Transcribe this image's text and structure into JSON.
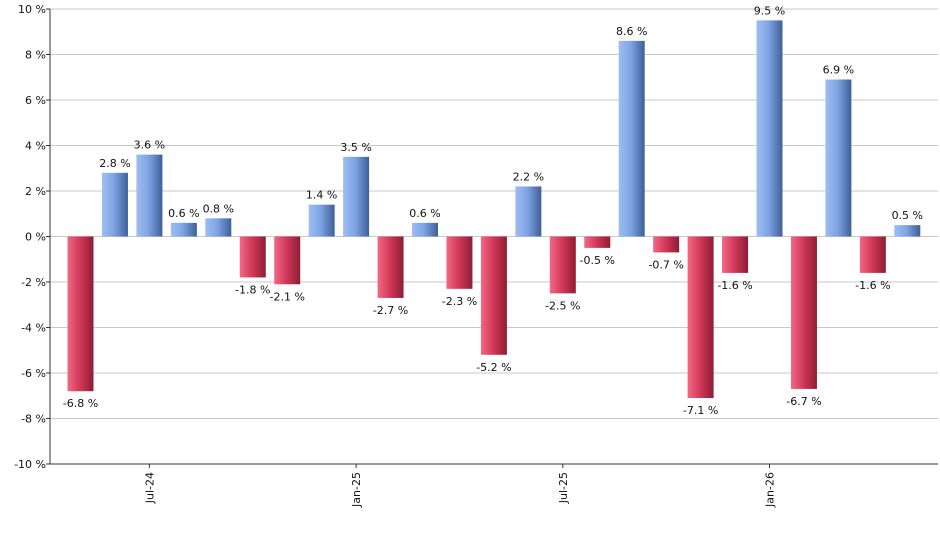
{
  "chart_data": {
    "type": "bar",
    "title": "",
    "xlabel": "",
    "ylabel": "",
    "ylim": [
      -10,
      10
    ],
    "y_ticks": [
      -10,
      -8,
      -6,
      -4,
      -2,
      0,
      2,
      4,
      6,
      8,
      10
    ],
    "y_tick_labels": [
      "-10 %",
      "-8 %",
      "-6 %",
      "-4 %",
      "-2 %",
      "0 %",
      "2 %",
      "4 %",
      "6 %",
      "8 %",
      "10 %"
    ],
    "grid": true,
    "legend": "none",
    "x_axis_labels": [
      {
        "label": "Jul-24",
        "index": 2
      },
      {
        "label": "Jan-25",
        "index": 8
      },
      {
        "label": "Jul-25",
        "index": 14
      },
      {
        "label": "Jan-26",
        "index": 20
      }
    ],
    "values": [
      -6.8,
      2.8,
      3.6,
      0.6,
      0.8,
      -1.8,
      -2.1,
      1.4,
      3.5,
      -2.7,
      0.6,
      -2.3,
      -5.2,
      2.2,
      -2.5,
      -0.5,
      8.6,
      -0.7,
      -7.1,
      -1.6,
      9.5,
      -6.7,
      6.9,
      -1.6,
      0.5
    ],
    "value_labels": [
      "-6.8 %",
      "2.8 %",
      "3.6 %",
      "0.6 %",
      "0.8 %",
      "-1.8 %",
      "-2.1 %",
      "1.4 %",
      "3.5 %",
      "-2.7 %",
      "0.6 %",
      "-2.3 %",
      "-5.2 %",
      "2.2 %",
      "-2.5 %",
      "-0.5 %",
      "8.6 %",
      "-0.7 %",
      "-7.1 %",
      "-1.6 %",
      "9.5 %",
      "-6.7 %",
      "6.9 %",
      "-1.6 %",
      "0.5 %"
    ],
    "colors": {
      "positive": "#6f95d8",
      "negative": "#d23a57",
      "grid": "#c8c8c8",
      "axis": "#333333"
    }
  }
}
